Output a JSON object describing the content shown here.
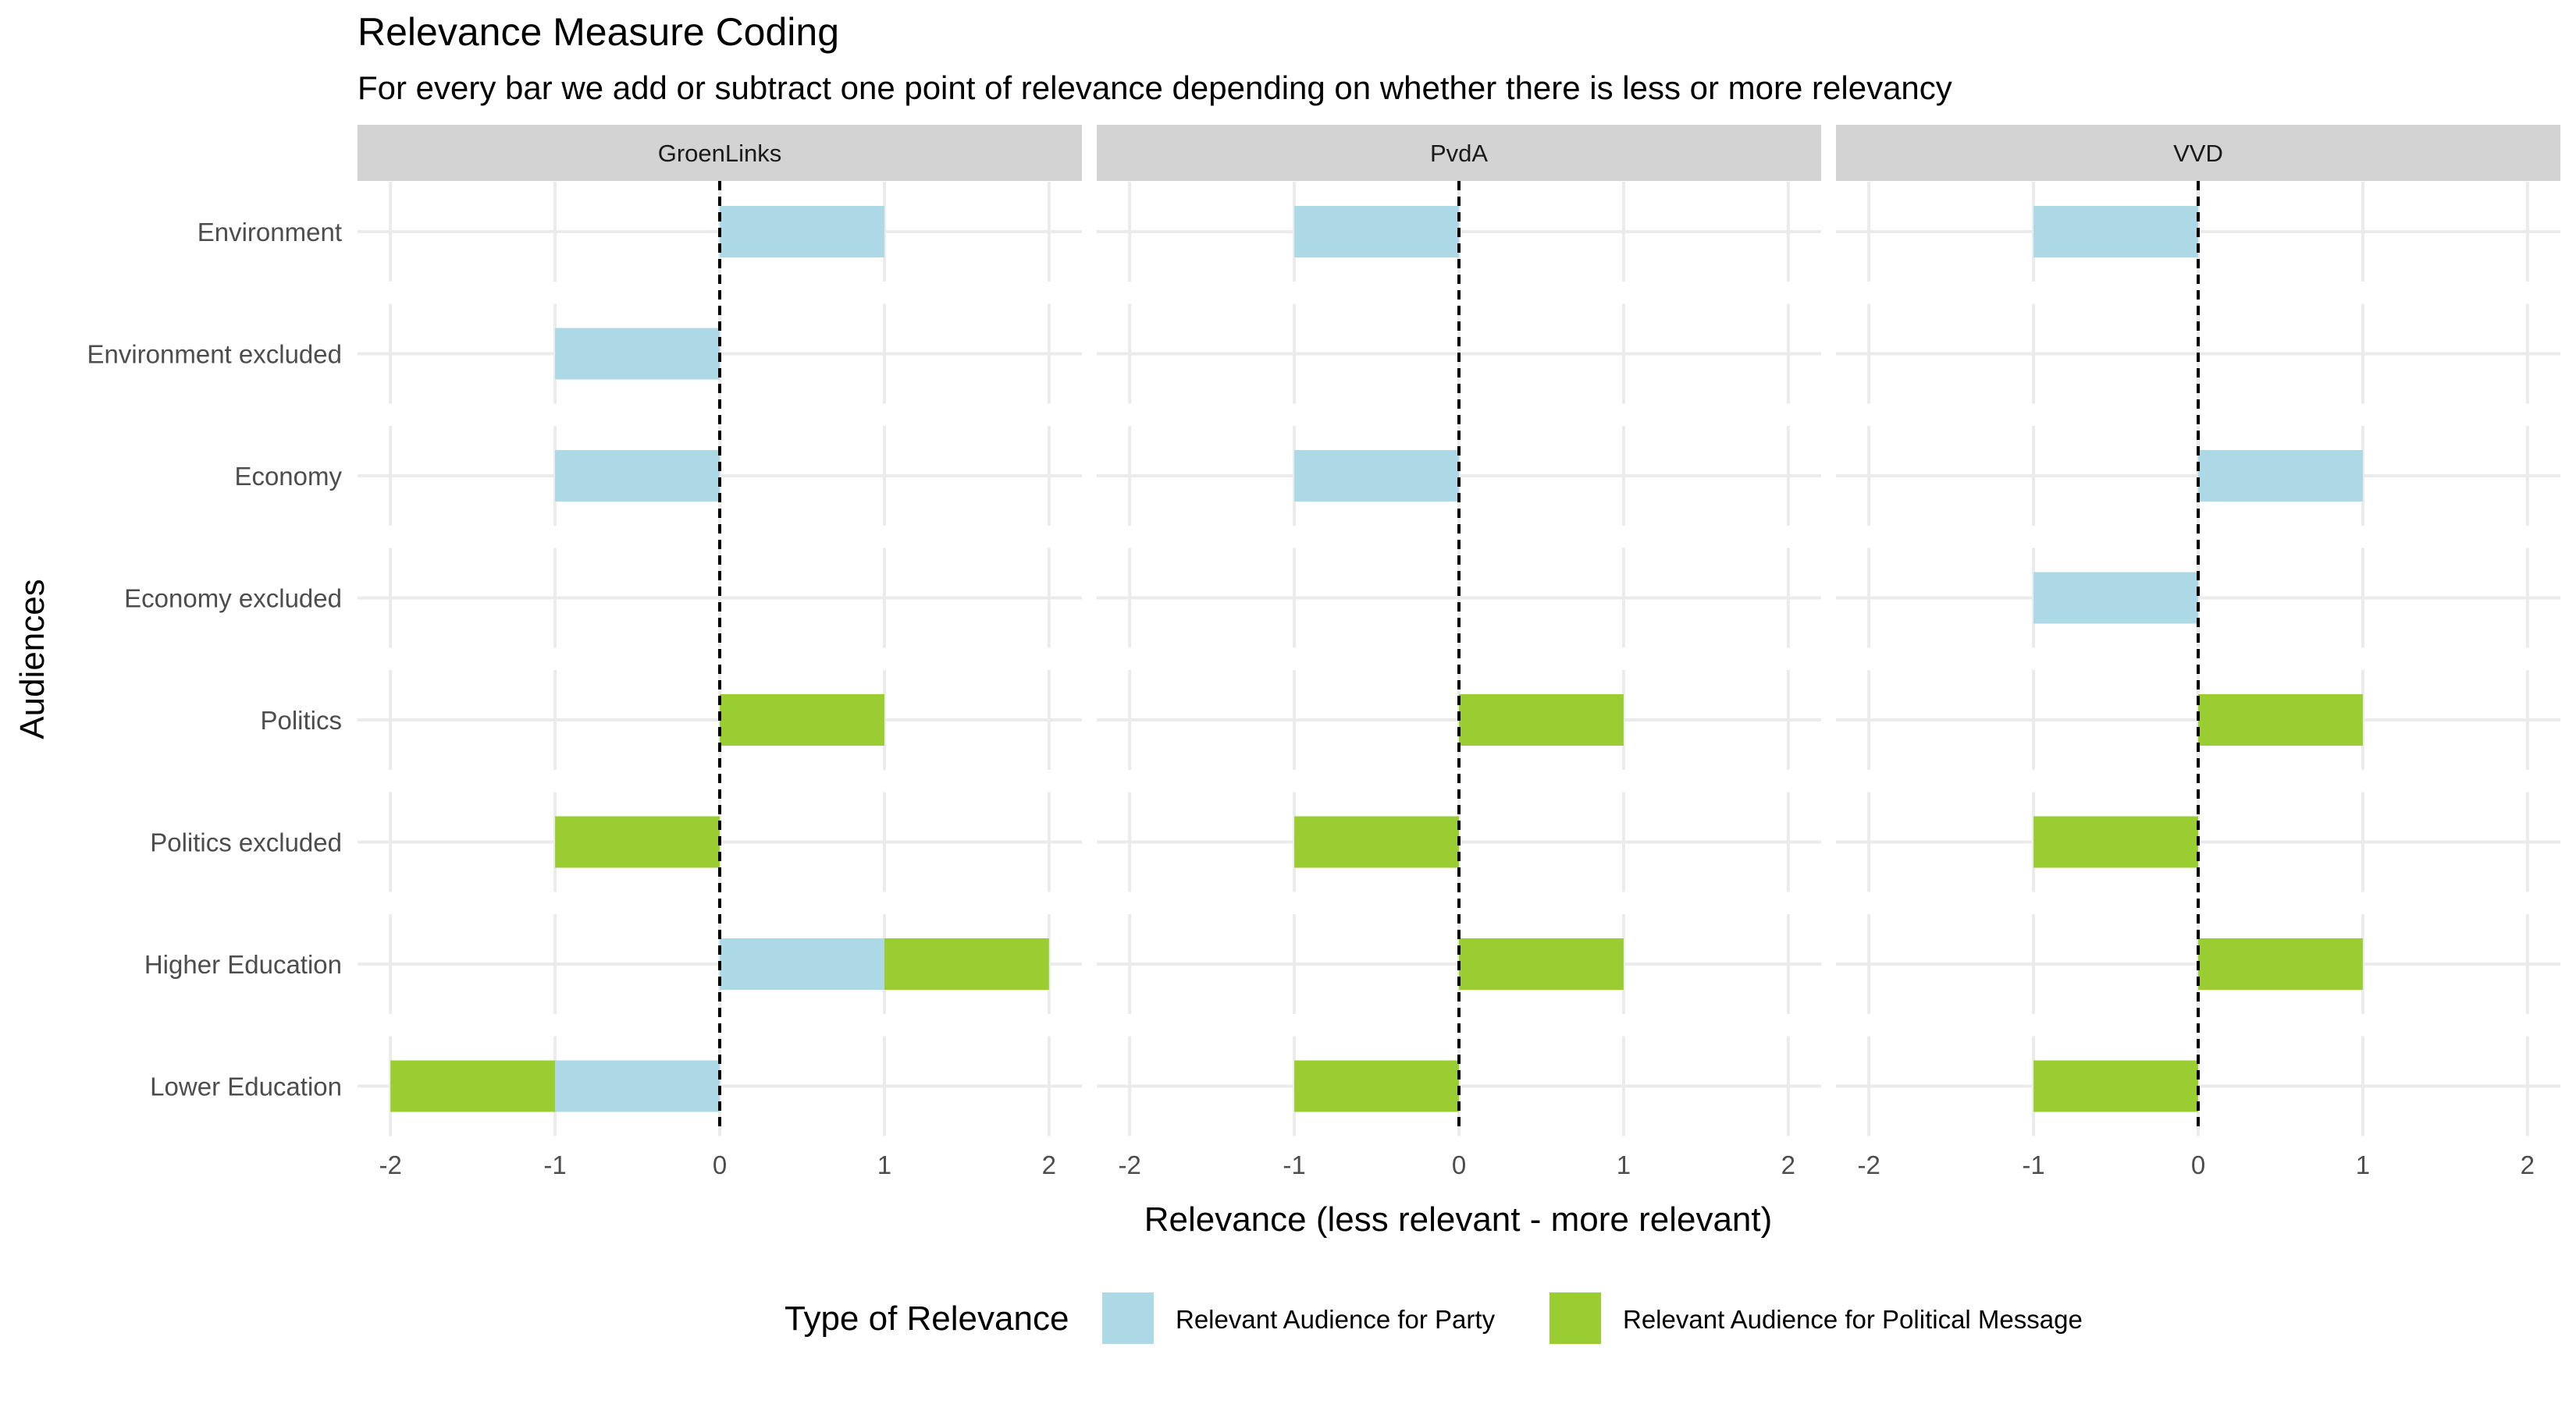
{
  "chart_data": {
    "type": "bar",
    "orientation": "horizontal",
    "stacked": true,
    "title": "Relevance Measure Coding",
    "subtitle": "For every bar we add or subtract one point of relevance depending on whether there is less or more relevancy",
    "xlabel": "Relevance (less relevant - more relevant)",
    "ylabel": "Audiences",
    "xlim": [
      -2.2,
      2.2
    ],
    "x_ticks": [
      -2,
      -1,
      0,
      1,
      2
    ],
    "x_tick_labels": [
      "-2",
      "-1",
      "0",
      "1",
      "2"
    ],
    "reference_line": {
      "x": 0,
      "style": "dashed"
    },
    "grid": true,
    "legend": {
      "title": "Type of Relevance",
      "position": "bottom",
      "entries": [
        {
          "name": "Relevant Audience for Party",
          "color": "#add8e6"
        },
        {
          "name": "Relevant Audience for Political Message",
          "color": "#9acd32"
        }
      ]
    },
    "categories": [
      "Environment",
      "Environment excluded",
      "Economy",
      "Economy excluded",
      "Politics",
      "Politics excluded",
      "Higher Education",
      "Lower Education"
    ],
    "facets": [
      {
        "name": "GroenLinks",
        "series": [
          {
            "name": "Relevant Audience for Party",
            "values": [
              1,
              -1,
              -1,
              0,
              0,
              0,
              1,
              -1
            ]
          },
          {
            "name": "Relevant Audience for Political Message",
            "values": [
              0,
              0,
              0,
              0,
              1,
              -1,
              1,
              -1
            ]
          }
        ]
      },
      {
        "name": "PvdA",
        "series": [
          {
            "name": "Relevant Audience for Party",
            "values": [
              -1,
              0,
              -1,
              0,
              0,
              0,
              0,
              0
            ]
          },
          {
            "name": "Relevant Audience for Political Message",
            "values": [
              0,
              0,
              0,
              0,
              1,
              -1,
              1,
              -1
            ]
          }
        ]
      },
      {
        "name": "VVD",
        "series": [
          {
            "name": "Relevant Audience for Party",
            "values": [
              -1,
              0,
              1,
              -1,
              0,
              0,
              0,
              0
            ]
          },
          {
            "name": "Relevant Audience for Political Message",
            "values": [
              0,
              0,
              0,
              0,
              1,
              -1,
              1,
              -1
            ]
          }
        ]
      }
    ]
  }
}
